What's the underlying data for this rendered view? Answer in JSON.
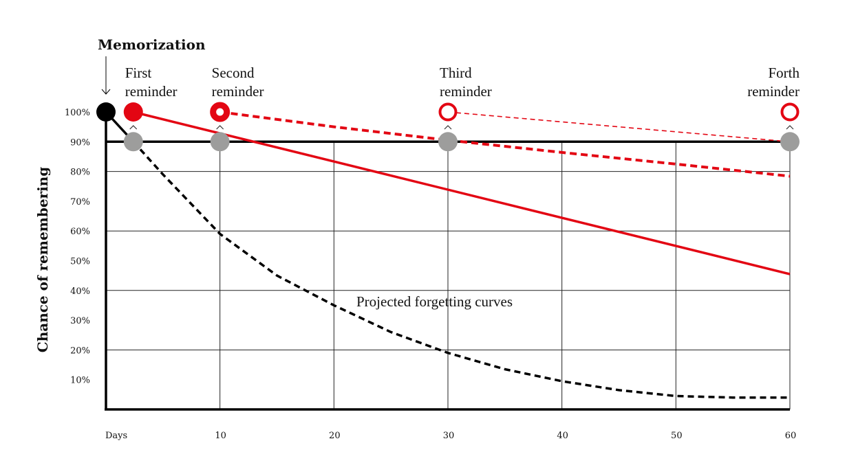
{
  "chart_data": {
    "type": "line",
    "title": "",
    "xlabel": "Days",
    "ylabel": "Chance of remembering",
    "xlim": [
      0,
      60
    ],
    "ylim": [
      0,
      100
    ],
    "x_ticks": [
      {
        "v": 0,
        "label": "Days"
      },
      {
        "v": 10,
        "label": "10"
      },
      {
        "v": 20,
        "label": "20"
      },
      {
        "v": 30,
        "label": "30"
      },
      {
        "v": 40,
        "label": "40"
      },
      {
        "v": 50,
        "label": "50"
      },
      {
        "v": 60,
        "label": "60"
      }
    ],
    "y_ticks": [
      {
        "v": 100,
        "label": "100%"
      },
      {
        "v": 90,
        "label": "90%"
      },
      {
        "v": 80,
        "label": "80%"
      },
      {
        "v": 70,
        "label": "70%"
      },
      {
        "v": 60,
        "label": "60%"
      },
      {
        "v": 50,
        "label": "50%"
      },
      {
        "v": 40,
        "label": "40%"
      },
      {
        "v": 30,
        "label": "30%"
      },
      {
        "v": 20,
        "label": "20%"
      },
      {
        "v": 10,
        "label": "10%"
      }
    ],
    "grid_y": [
      80,
      60,
      40,
      20
    ],
    "threshold_y": 90,
    "grid_x": [
      10,
      20,
      30,
      40,
      50,
      60
    ],
    "annotation": "Projected forgetting curves",
    "memorization_label": "Memorization",
    "colors": {
      "red": "#e30613",
      "black": "#000000",
      "gray": "#9d9d9c"
    },
    "series": [
      {
        "style": "solid-black",
        "color": "#000000",
        "points": [
          [
            0,
            100
          ],
          [
            2.4,
            90
          ]
        ]
      },
      {
        "style": "dashed-black",
        "color": "#000000",
        "points": [
          [
            2.4,
            90
          ],
          [
            5,
            79
          ],
          [
            10,
            59
          ],
          [
            15,
            45
          ],
          [
            20,
            35
          ],
          [
            25,
            26
          ],
          [
            30,
            19
          ],
          [
            35,
            13.5
          ],
          [
            40,
            9.5
          ],
          [
            45,
            6.5
          ],
          [
            50,
            4.5
          ],
          [
            55,
            4
          ],
          [
            60,
            4
          ]
        ]
      },
      {
        "style": "solid-red",
        "color": "#e30613",
        "points": [
          [
            2.4,
            100
          ],
          [
            60,
            45.5
          ]
        ]
      },
      {
        "style": "dashed-red",
        "color": "#e30613",
        "points": [
          [
            10,
            100
          ],
          [
            20,
            95
          ],
          [
            30,
            90.5
          ],
          [
            40,
            86.4
          ],
          [
            50,
            82.5
          ],
          [
            60,
            78.4
          ]
        ]
      },
      {
        "style": "thin-dashed-red",
        "color": "#e30613",
        "points": [
          [
            30,
            100
          ],
          [
            60,
            90
          ]
        ]
      }
    ],
    "reminders": [
      {
        "day": 2.4,
        "label_line1": "First",
        "label_line2": "reminder",
        "marker": "filled"
      },
      {
        "day": 10,
        "label_line1": "Second",
        "label_line2": "reminder",
        "marker": "ring-dot"
      },
      {
        "day": 30,
        "label_line1": "Third",
        "label_line2": "reminder",
        "marker": "ring"
      },
      {
        "day": 60,
        "label_line1": "Forth",
        "label_line2": "reminder",
        "marker": "ring"
      }
    ]
  }
}
